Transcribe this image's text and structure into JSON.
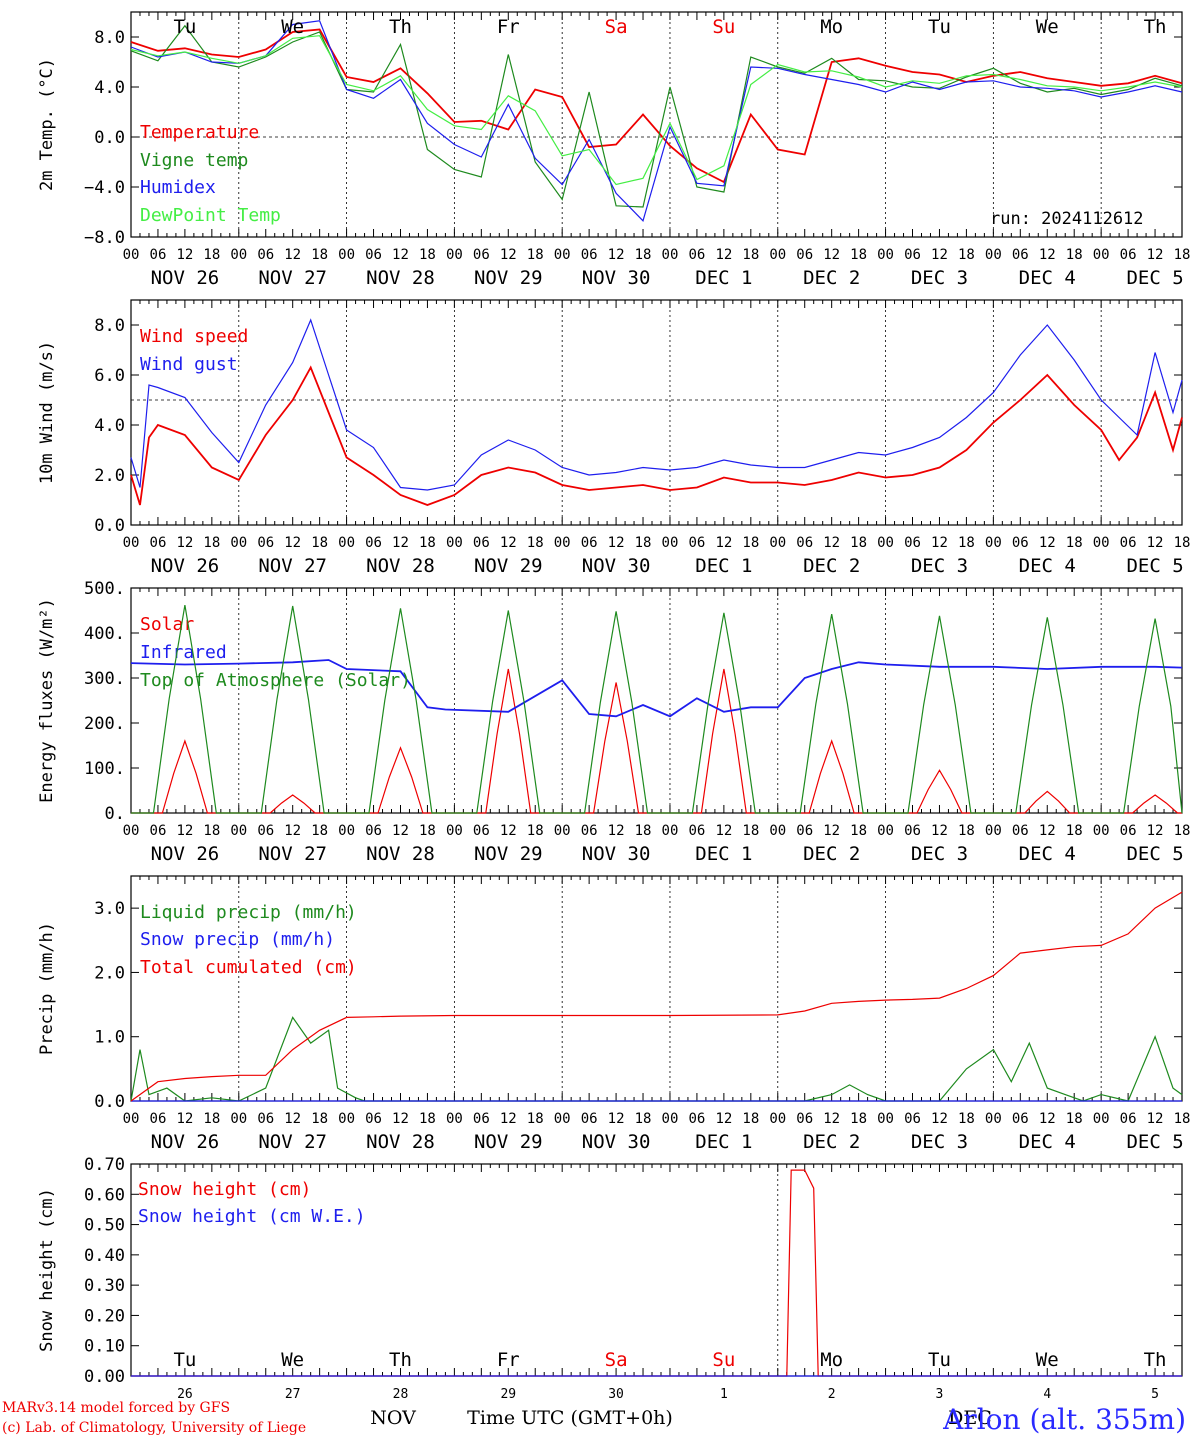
{
  "run": "run: 2024112612",
  "x_tick_labels": [
    "00",
    "06",
    "12",
    "18"
  ],
  "date_labels": [
    "NOV 26",
    "NOV 27",
    "NOV 28",
    "NOV 29",
    "NOV 30",
    "DEC  1",
    "DEC  2",
    "DEC  3",
    "DEC  4",
    "DEC  5"
  ],
  "weekday_labels": [
    {
      "text": "Tu",
      "color": "#000000"
    },
    {
      "text": "We",
      "color": "#000000"
    },
    {
      "text": "Th",
      "color": "#000000"
    },
    {
      "text": "Fr",
      "color": "#000000"
    },
    {
      "text": "Sa",
      "color": "#ee0000"
    },
    {
      "text": "Su",
      "color": "#ee0000"
    },
    {
      "text": "Mo",
      "color": "#000000"
    },
    {
      "text": "Tu",
      "color": "#000000"
    },
    {
      "text": "We",
      "color": "#000000"
    },
    {
      "text": "Th",
      "color": "#000000"
    }
  ],
  "bottom_day_numbers": [
    "26",
    "27",
    "28",
    "29",
    "30",
    "1",
    "2",
    "3",
    "4",
    "5"
  ],
  "bottom_month_labels": [
    "NOV",
    "DEC"
  ],
  "xlabel": "Time UTC (GMT+0h)",
  "credits": [
    "MARv3.14 model forced by GFS",
    "(c) Lab. of Climatology, University of Liege"
  ],
  "station": "Arlon (alt. 355m)",
  "colors": {
    "red": "#ee0000",
    "green": "#1e8a1e",
    "blue": "#1e1eee",
    "lightgreen": "#44ee44"
  },
  "chart_data": [
    {
      "type": "line",
      "ylabel": "2m Temp. (°C)",
      "ylim": [
        -8,
        10
      ],
      "yticks": [
        8,
        4,
        0,
        -4,
        -8
      ],
      "ytick_labels": [
        "8.0",
        "4.0",
        "0.0",
        "−4.0",
        "−8.0"
      ],
      "refline": 0,
      "series": [
        {
          "name": "Temperature",
          "color": "#ee0000",
          "x": [
            0,
            6,
            12,
            18,
            24,
            30,
            36,
            42,
            48,
            54,
            60,
            66,
            72,
            78,
            84,
            90,
            96,
            102,
            108,
            114,
            120,
            126,
            132,
            138,
            144,
            150,
            156,
            162,
            168,
            174,
            180,
            186,
            192,
            198,
            204,
            210,
            216,
            222,
            228,
            234
          ],
          "values": [
            7.6,
            6.9,
            7.1,
            6.6,
            6.4,
            7.0,
            8.4,
            8.6,
            4.8,
            4.4,
            5.5,
            3.5,
            1.2,
            1.3,
            0.6,
            3.8,
            3.2,
            -0.8,
            -0.6,
            1.8,
            -0.7,
            -2.5,
            -3.6,
            1.8,
            -1.0,
            -1.4,
            6.0,
            6.3,
            5.7,
            5.2,
            5.0,
            4.4,
            4.9,
            5.2,
            4.7,
            4.4,
            4.1,
            4.3,
            4.9,
            4.3
          ]
        },
        {
          "name": "Vigne temp",
          "color": "#1e8a1e",
          "x": [
            0,
            6,
            12,
            18,
            24,
            30,
            36,
            42,
            48,
            54,
            60,
            66,
            72,
            78,
            84,
            90,
            96,
            102,
            108,
            114,
            120,
            126,
            132,
            138,
            144,
            150,
            156,
            162,
            168,
            174,
            180,
            186,
            192,
            198,
            204,
            210,
            216,
            222,
            228,
            234
          ],
          "values": [
            6.9,
            6.1,
            8.9,
            6.0,
            5.6,
            6.4,
            7.6,
            8.4,
            3.8,
            3.6,
            7.4,
            -1.0,
            -2.6,
            -3.2,
            6.6,
            -2.0,
            -5.0,
            3.6,
            -5.5,
            -5.6,
            4.0,
            -4.0,
            -4.4,
            6.4,
            5.6,
            5.1,
            6.3,
            4.6,
            4.5,
            4.0,
            3.9,
            4.8,
            5.5,
            4.3,
            3.6,
            3.9,
            3.4,
            3.8,
            4.7,
            4.1
          ]
        },
        {
          "name": "Humidex",
          "color": "#1e1eee",
          "x": [
            0,
            6,
            12,
            18,
            24,
            30,
            36,
            42,
            48,
            54,
            60,
            66,
            72,
            78,
            84,
            90,
            96,
            102,
            108,
            114,
            120,
            126,
            132,
            138,
            144,
            150,
            156,
            162,
            168,
            174,
            180,
            186,
            192,
            198,
            204,
            210,
            216,
            222,
            228,
            234
          ],
          "values": [
            7.2,
            6.4,
            6.8,
            6.0,
            5.9,
            6.5,
            9.0,
            9.3,
            3.8,
            3.1,
            4.6,
            1.1,
            -0.6,
            -1.6,
            2.6,
            -1.7,
            -3.8,
            -0.2,
            -4.5,
            -6.7,
            0.8,
            -3.7,
            -3.9,
            5.6,
            5.5,
            5.0,
            4.6,
            4.2,
            3.6,
            4.4,
            3.8,
            4.4,
            4.5,
            4.0,
            3.9,
            3.7,
            3.2,
            3.6,
            4.1,
            3.6
          ]
        },
        {
          "name": "DewPoint Temp",
          "color": "#44ee44",
          "x": [
            0,
            6,
            12,
            18,
            24,
            30,
            36,
            42,
            48,
            54,
            60,
            66,
            72,
            78,
            84,
            90,
            96,
            102,
            108,
            114,
            120,
            126,
            132,
            138,
            144,
            150,
            156,
            162,
            168,
            174,
            180,
            186,
            192,
            198,
            204,
            210,
            216,
            222,
            228,
            234
          ],
          "values": [
            7.0,
            6.5,
            6.8,
            6.3,
            5.9,
            6.5,
            7.9,
            8.1,
            4.2,
            3.7,
            4.9,
            2.2,
            0.9,
            0.6,
            3.3,
            2.1,
            -1.5,
            -1.0,
            -3.8,
            -3.3,
            1.1,
            -3.4,
            -2.3,
            4.2,
            5.8,
            5.2,
            5.3,
            4.8,
            4.0,
            4.5,
            4.3,
            4.9,
            5.0,
            4.6,
            4.1,
            4.0,
            3.7,
            4.0,
            4.4,
            4.0
          ]
        }
      ]
    },
    {
      "type": "line",
      "ylabel": "10m Wind (m/s)",
      "ylim": [
        0,
        9
      ],
      "yticks": [
        8,
        6,
        4,
        2,
        0
      ],
      "ytick_labels": [
        "8.0",
        "6.0",
        "4.0",
        "2.0",
        "0.0"
      ],
      "refline": 5,
      "series": [
        {
          "name": "Wind speed",
          "color": "#ee0000",
          "x": [
            0,
            2,
            4,
            6,
            12,
            18,
            24,
            30,
            36,
            40,
            44,
            48,
            54,
            60,
            66,
            72,
            78,
            84,
            90,
            96,
            102,
            108,
            114,
            120,
            126,
            132,
            138,
            144,
            150,
            156,
            162,
            168,
            174,
            180,
            186,
            192,
            198,
            204,
            210,
            216,
            220,
            224,
            228,
            232,
            234
          ],
          "values": [
            2.0,
            0.8,
            3.5,
            4.0,
            3.6,
            2.3,
            1.8,
            3.6,
            5.0,
            6.3,
            4.5,
            2.7,
            2.0,
            1.2,
            0.8,
            1.2,
            2.0,
            2.3,
            2.1,
            1.6,
            1.4,
            1.5,
            1.6,
            1.4,
            1.5,
            1.9,
            1.7,
            1.7,
            1.6,
            1.8,
            2.1,
            1.9,
            2.0,
            2.3,
            3.0,
            4.1,
            5.0,
            6.0,
            4.8,
            3.8,
            2.6,
            3.5,
            5.3,
            3.0,
            4.3
          ]
        },
        {
          "name": "Wind gust",
          "color": "#1e1eee",
          "x": [
            0,
            2,
            4,
            6,
            12,
            18,
            24,
            30,
            36,
            40,
            44,
            48,
            54,
            60,
            66,
            72,
            78,
            84,
            90,
            96,
            102,
            108,
            114,
            120,
            126,
            132,
            138,
            144,
            150,
            156,
            162,
            168,
            174,
            180,
            186,
            192,
            198,
            204,
            210,
            216,
            220,
            224,
            228,
            232,
            234
          ],
          "values": [
            2.7,
            1.5,
            5.6,
            5.5,
            5.1,
            3.7,
            2.5,
            4.8,
            6.5,
            8.2,
            6.0,
            3.8,
            3.1,
            1.5,
            1.4,
            1.6,
            2.8,
            3.4,
            3.0,
            2.3,
            2.0,
            2.1,
            2.3,
            2.2,
            2.3,
            2.6,
            2.4,
            2.3,
            2.3,
            2.6,
            2.9,
            2.8,
            3.1,
            3.5,
            4.3,
            5.3,
            6.8,
            8.0,
            6.6,
            5.0,
            4.3,
            3.6,
            6.9,
            4.5,
            5.8
          ]
        }
      ]
    },
    {
      "type": "line",
      "ylabel": "Energy fluxes (W/m²)",
      "ylim": [
        0,
        500
      ],
      "yticks": [
        500,
        400,
        300,
        200,
        100,
        0
      ],
      "ytick_labels": [
        "500.",
        "400.",
        "300.",
        "200.",
        "100.",
        "0."
      ],
      "series": [
        {
          "name": "Solar",
          "color": "#ee0000",
          "peaks": [
            160,
            40,
            145,
            320,
            290,
            320,
            160,
            95,
            48,
            40
          ]
        },
        {
          "name": "Infrared",
          "color": "#1e1eee",
          "x": [
            0,
            12,
            24,
            36,
            44,
            48,
            60,
            66,
            70,
            84,
            96,
            102,
            108,
            114,
            120,
            126,
            132,
            138,
            144,
            150,
            156,
            162,
            168,
            180,
            192,
            204,
            216,
            228,
            234
          ],
          "values": [
            333,
            330,
            332,
            335,
            340,
            320,
            315,
            235,
            230,
            225,
            295,
            220,
            215,
            240,
            215,
            255,
            225,
            235,
            235,
            300,
            320,
            335,
            330,
            325,
            325,
            320,
            325,
            325,
            323
          ]
        },
        {
          "name": "Top of Atmosphere (Solar)",
          "color": "#1e8a1e",
          "peaks": [
            462,
            460,
            455,
            450,
            448,
            445,
            442,
            438,
            435,
            432
          ]
        }
      ]
    },
    {
      "type": "line",
      "ylabel": "Precip (mm/h)",
      "ylim": [
        0,
        3.5
      ],
      "yticks": [
        3,
        2,
        1,
        0
      ],
      "ytick_labels": [
        "3.0",
        "2.0",
        "1.0",
        "0.0"
      ],
      "series": [
        {
          "name": "Liquid precip (mm/h)",
          "color": "#1e8a1e",
          "x": [
            0,
            2,
            4,
            8,
            12,
            18,
            24,
            30,
            36,
            40,
            44,
            46,
            50,
            52,
            54,
            60,
            100,
            150,
            156,
            160,
            164,
            168,
            174,
            180,
            186,
            192,
            196,
            200,
            204,
            208,
            212,
            216,
            222,
            228,
            232,
            234
          ],
          "values": [
            0,
            0.8,
            0.1,
            0.2,
            0,
            0.05,
            0,
            0.2,
            1.3,
            0.9,
            1.1,
            0.2,
            0.05,
            0,
            0,
            0,
            0,
            0,
            0.1,
            0.25,
            0.1,
            0,
            0,
            0,
            0.5,
            0.8,
            0.3,
            0.9,
            0.2,
            0.1,
            0,
            0.1,
            0,
            1.0,
            0.2,
            0.1
          ]
        },
        {
          "name": "Snow precip (mm/h)",
          "color": "#1e1eee",
          "x": [
            0,
            234
          ],
          "values": [
            0,
            0
          ]
        },
        {
          "name": "Total cumulated (cm)",
          "color": "#ee0000",
          "x": [
            0,
            6,
            12,
            18,
            24,
            30,
            36,
            42,
            48,
            54,
            60,
            72,
            96,
            120,
            144,
            150,
            156,
            162,
            168,
            174,
            180,
            186,
            192,
            198,
            204,
            210,
            216,
            222,
            228,
            234
          ],
          "values": [
            0,
            0.3,
            0.35,
            0.38,
            0.4,
            0.4,
            0.8,
            1.1,
            1.3,
            1.31,
            1.32,
            1.33,
            1.33,
            1.33,
            1.34,
            1.4,
            1.52,
            1.55,
            1.57,
            1.58,
            1.6,
            1.75,
            1.95,
            2.3,
            2.35,
            2.4,
            2.42,
            2.6,
            3.0,
            3.25
          ]
        }
      ]
    },
    {
      "type": "line",
      "ylabel": "Snow height (cm)",
      "ylim": [
        0,
        0.7
      ],
      "yticks": [
        0.7,
        0.6,
        0.5,
        0.4,
        0.3,
        0.2,
        0.1,
        0
      ],
      "ytick_labels": [
        "0.70",
        "0.60",
        "0.50",
        "0.40",
        "0.30",
        "0.20",
        "0.10",
        "0.00"
      ],
      "series": [
        {
          "name": "Snow height (cm)",
          "color": "#ee0000",
          "x": [
            0,
            146,
            147,
            150,
            152,
            153,
            234
          ],
          "values": [
            0,
            0,
            0.68,
            0.68,
            0.62,
            0,
            0
          ]
        },
        {
          "name": "Snow height (cm W.E.)",
          "color": "#1e1eee",
          "x": [
            0,
            234
          ],
          "values": [
            0,
            0
          ]
        }
      ]
    }
  ]
}
